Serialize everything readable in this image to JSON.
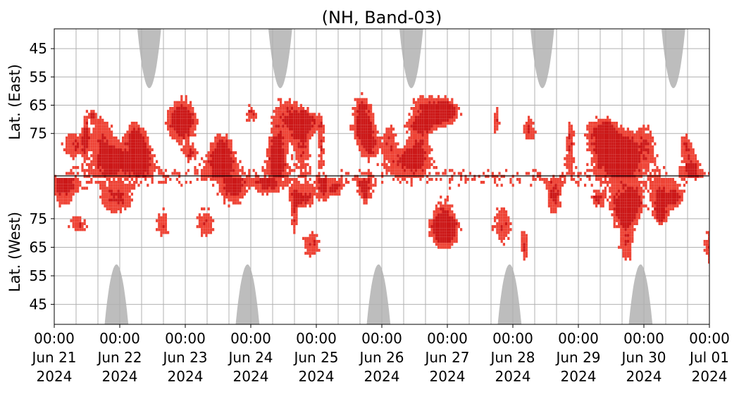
{
  "chart_data": {
    "type": "heatmap",
    "title": "(NH, Band-03)",
    "ylabel_top": "Lat. (East)",
    "ylabel_bottom": "Lat. (West)",
    "xlim": [
      "2024-06-21T00:00",
      "2024-07-01T00:00"
    ],
    "x_ticks": [
      {
        "time": "00:00",
        "date": "Jun 21",
        "year": "2024"
      },
      {
        "time": "00:00",
        "date": "Jun 22",
        "year": "2024"
      },
      {
        "time": "00:00",
        "date": "Jun 23",
        "year": "2024"
      },
      {
        "time": "00:00",
        "date": "Jun 24",
        "year": "2024"
      },
      {
        "time": "00:00",
        "date": "Jun 25",
        "year": "2024"
      },
      {
        "time": "00:00",
        "date": "Jun 26",
        "year": "2024"
      },
      {
        "time": "00:00",
        "date": "Jun 27",
        "year": "2024"
      },
      {
        "time": "00:00",
        "date": "Jun 28",
        "year": "2024"
      },
      {
        "time": "00:00",
        "date": "Jun 29",
        "year": "2024"
      },
      {
        "time": "00:00",
        "date": "Jun 30",
        "year": "2024"
      },
      {
        "time": "00:00",
        "date": "Jul 01",
        "year": "2024"
      }
    ],
    "y_ticks_east": [
      "45",
      "55",
      "65",
      "75"
    ],
    "y_ticks_west": [
      "75",
      "65",
      "55",
      "45"
    ],
    "ylim_each_half": [
      38,
      90
    ],
    "grid": true,
    "colors": {
      "strong": "#cc1818",
      "medium": "#ee4436",
      "night": "#bdbdbd",
      "grid": "#b0b0b0",
      "divider": "#000000"
    },
    "east_night_peaks_days": [
      1.45,
      3.45,
      5.45,
      7.45,
      9.45
    ],
    "west_night_peaks_days": [
      0.95,
      2.95,
      4.95,
      6.95,
      8.95
    ]
  }
}
